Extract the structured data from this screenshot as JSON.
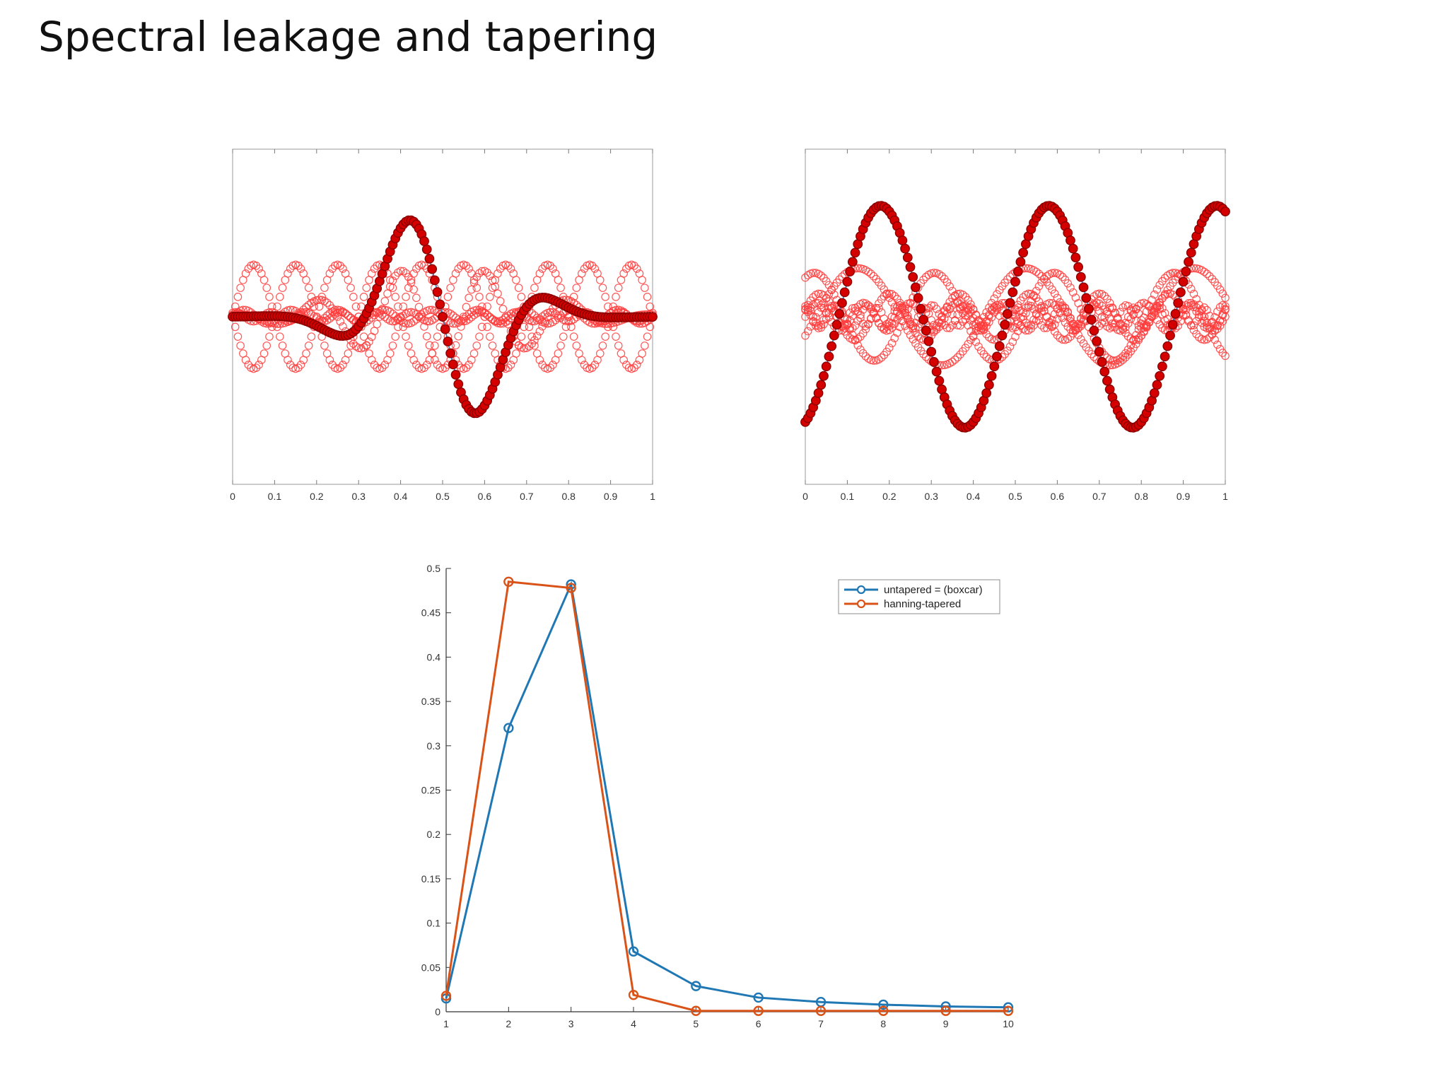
{
  "slide": {
    "title": "Spectral leakage and tapering"
  },
  "colors": {
    "filled_marker": "#d40000",
    "filled_edge": "#8a0000",
    "open_marker": "#ff3b3b",
    "signal_line": "#2a7fc1",
    "untapered": "#1f77b4",
    "tapered": "#d95319"
  },
  "chart_data": [
    {
      "type": "scatter",
      "title": "",
      "xlabel": "",
      "ylabel": "",
      "xlim": [
        0,
        1
      ],
      "ylim": [
        -1.45,
        1.45
      ],
      "x_ticks": [
        "0",
        "0.1",
        "0.2",
        "0.3",
        "0.4",
        "0.5",
        "0.6",
        "0.7",
        "0.8",
        "0.9",
        "1"
      ],
      "signal": {
        "description_free": true,
        "envelope_center": 0.5,
        "envelope_width": 0.19,
        "frequency": 2.7,
        "amplitude": 1.0
      },
      "filled_markers": "signal sampled at 161 points",
      "open_markers": "harmonic components of period 0.2"
    },
    {
      "type": "scatter",
      "title": "",
      "xlabel": "",
      "ylabel": "",
      "xlim": [
        0,
        1
      ],
      "ylim": [
        -1.45,
        1.45
      ],
      "x_ticks": [
        "0",
        "0.1",
        "0.2",
        "0.3",
        "0.4",
        "0.5",
        "0.6",
        "0.7",
        "0.8",
        "0.9",
        "1"
      ],
      "signal": {
        "frequency": 2.5,
        "amplitude": 1.0
      },
      "filled_markers": "signal sampled at 161 points",
      "open_markers": "mixed leakage components"
    },
    {
      "type": "line",
      "title": "",
      "xlabel": "",
      "ylabel": "",
      "xlim": [
        1,
        10
      ],
      "ylim": [
        0,
        0.5
      ],
      "x": [
        1,
        2,
        3,
        4,
        5,
        6,
        7,
        8,
        9,
        10
      ],
      "x_ticks": [
        "1",
        "2",
        "3",
        "4",
        "5",
        "6",
        "7",
        "8",
        "9",
        "10"
      ],
      "y_ticks": [
        "0",
        "0.05",
        "0.1",
        "0.15",
        "0.2",
        "0.25",
        "0.3",
        "0.35",
        "0.4",
        "0.45",
        "0.5"
      ],
      "legend_position": "top-right",
      "series": [
        {
          "name": "untapered = (boxcar)",
          "values": [
            0.015,
            0.32,
            0.482,
            0.068,
            0.029,
            0.016,
            0.011,
            0.008,
            0.006,
            0.005
          ]
        },
        {
          "name": "hanning-tapered",
          "values": [
            0.018,
            0.485,
            0.478,
            0.019,
            0.001,
            0.001,
            0.001,
            0.001,
            0.001,
            0.001
          ]
        }
      ]
    }
  ]
}
